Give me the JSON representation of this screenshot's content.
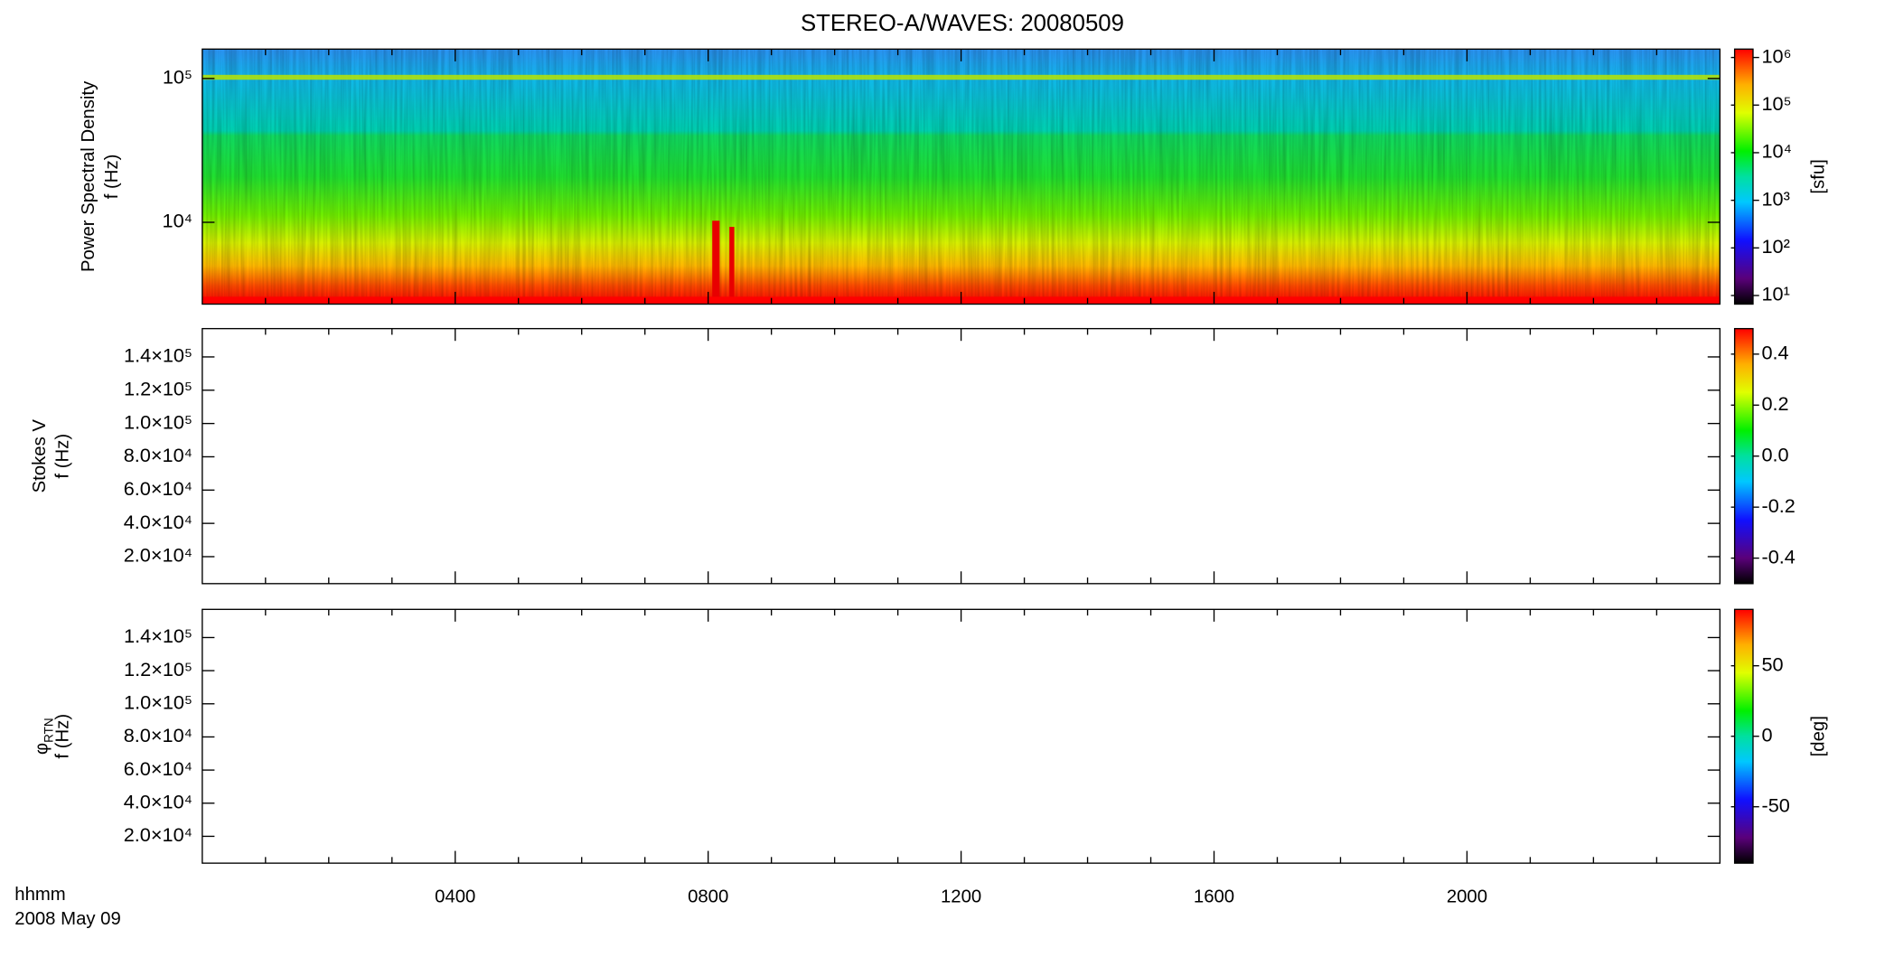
{
  "title": "STEREO-A/WAVES: 20080509",
  "x_axis": {
    "xlim": [
      0,
      24
    ],
    "xticks": [
      {
        "value": 4,
        "label": "0400"
      },
      {
        "value": 8,
        "label": "0800"
      },
      {
        "value": 12,
        "label": "1200"
      },
      {
        "value": 16,
        "label": "1600"
      },
      {
        "value": 20,
        "label": "2000"
      }
    ],
    "minor_ticks": [
      1,
      2,
      3,
      5,
      6,
      7,
      9,
      10,
      11,
      13,
      14,
      15,
      17,
      18,
      19,
      21,
      22,
      23
    ],
    "labels": [
      "hhmm",
      "2008 May 09"
    ]
  },
  "chart_data": [
    {
      "type": "heatmap",
      "ylabel": [
        "Power Spectral Density",
        "f (Hz)"
      ],
      "ylog": true,
      "ylim": [
        2700,
        160000
      ],
      "yticks": [
        {
          "value": 10000,
          "label": "10⁴"
        },
        {
          "value": 100000,
          "label": "10⁵"
        }
      ],
      "colorbar": {
        "log": true,
        "lim": [
          6.6,
          1500000
        ],
        "label": "[sfu]",
        "ticks": [
          {
            "value": 10,
            "label": "10¹"
          },
          {
            "value": 100,
            "label": "10²"
          },
          {
            "value": 1000,
            "label": "10³"
          },
          {
            "value": 10000,
            "label": "10⁴"
          },
          {
            "value": 100000,
            "label": "10⁵"
          },
          {
            "value": 1000000,
            "label": "10⁶"
          }
        ]
      }
    },
    {
      "type": "heatmap",
      "ylabel": [
        "Stokes V",
        "f (Hz)"
      ],
      "ylim": [
        3800,
        157000
      ],
      "yticks": [
        {
          "value": 20000,
          "label": "2.0×10⁴"
        },
        {
          "value": 40000,
          "label": "4.0×10⁴"
        },
        {
          "value": 60000,
          "label": "6.0×10⁴"
        },
        {
          "value": 80000,
          "label": "8.0×10⁴"
        },
        {
          "value": 100000,
          "label": "1.0×10⁵"
        },
        {
          "value": 120000,
          "label": "1.2×10⁵"
        },
        {
          "value": 140000,
          "label": "1.4×10⁵"
        }
      ],
      "colorbar": {
        "lim": [
          -0.5,
          0.5
        ],
        "ticks": [
          {
            "value": -0.4,
            "label": "-0.4"
          },
          {
            "value": -0.2,
            "label": "-0.2"
          },
          {
            "value": 0,
            "label": "0.0"
          },
          0.2,
          0.4
        ]
      }
    },
    {
      "type": "heatmap",
      "ylabel": [
        "φ",
        "f (Hz)"
      ],
      "ylabel_subscript": "RTN",
      "ylim": [
        3800,
        157000
      ],
      "yticks": [
        {
          "value": 20000,
          "label": "2.0×10⁴"
        },
        {
          "value": 40000,
          "label": "4.0×10⁴"
        },
        {
          "value": 60000,
          "label": "6.0×10⁴"
        },
        {
          "value": 80000,
          "label": "8.0×10⁴"
        },
        {
          "value": 100000,
          "label": "1.0×10⁵"
        },
        {
          "value": 120000,
          "label": "1.2×10⁵"
        },
        {
          "value": 140000,
          "label": "1.4×10⁵"
        }
      ],
      "colorbar": {
        "lim": [
          -90,
          90
        ],
        "label": "[deg]",
        "ticks": [
          -50,
          0,
          50
        ]
      }
    }
  ]
}
